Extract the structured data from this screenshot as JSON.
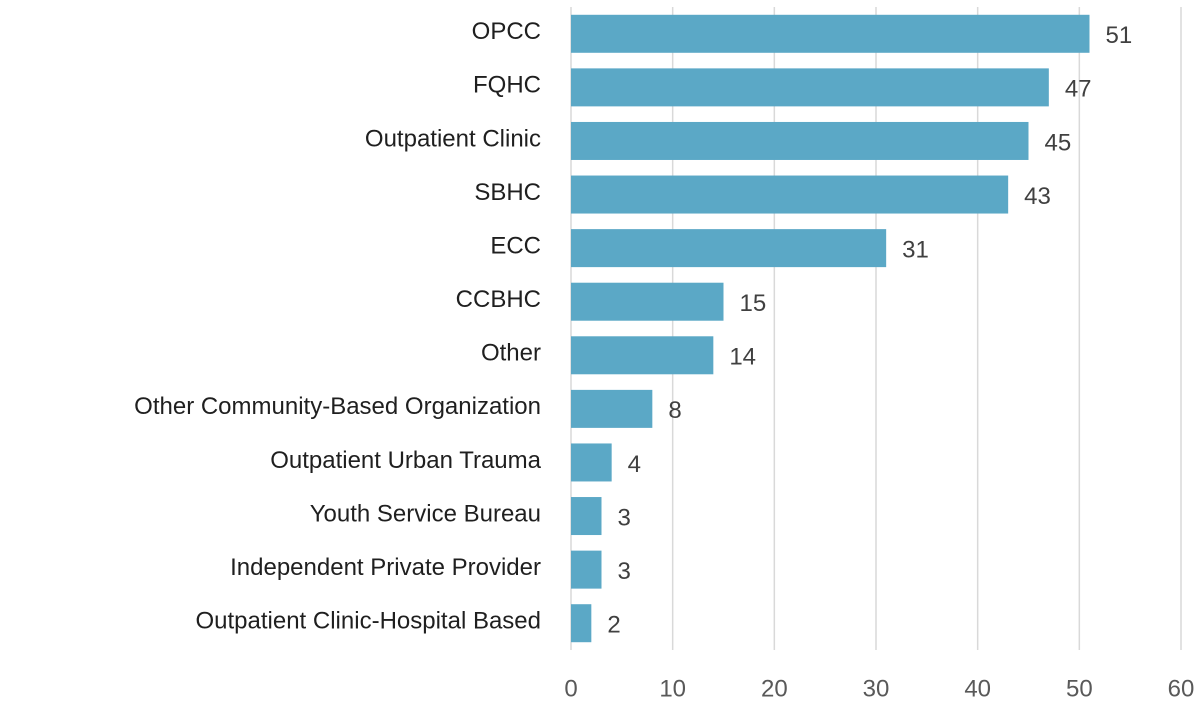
{
  "chart_data": {
    "type": "bar",
    "orientation": "horizontal",
    "categories": [
      "OPCC",
      "FQHC",
      "Outpatient Clinic",
      "SBHC",
      "ECC",
      "CCBHC",
      "Other",
      "Other Community-Based Organization",
      "Outpatient Urban Trauma",
      "Youth Service Bureau",
      "Independent Private Provider",
      "Outpatient Clinic-Hospital Based"
    ],
    "values": [
      51,
      47,
      45,
      43,
      31,
      15,
      14,
      8,
      4,
      3,
      3,
      2
    ],
    "color": "#5ba8c6",
    "xlim": [
      0,
      60
    ],
    "xticks": [
      0,
      10,
      20,
      30,
      40,
      50,
      60
    ],
    "grid": true
  }
}
